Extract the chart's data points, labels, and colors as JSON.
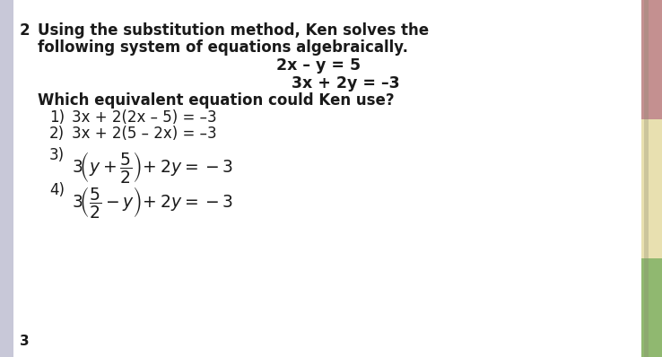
{
  "bg_color": "#f0f0f0",
  "paper_color": "#ffffff",
  "left_bar_color": "#c8c8d8",
  "right_bar_top_color": "#c49090",
  "right_bar_mid_color": "#e8e0b0",
  "right_bar_bot_color": "#90b870",
  "question_number": "2",
  "line1": "Using the substitution method, Ken solves the",
  "line2": "following system of equations algebraically.",
  "eq1": "2x – y = 5",
  "eq2": "3x + 2y = –3",
  "question": "Which equivalent equation could Ken use?",
  "opt1_num": "1)",
  "opt1_text": "3x + 2(2x – 5) = –3",
  "opt2_num": "2)",
  "opt2_text": "3x + 2(5 – 2x) = –3",
  "opt3_num": "3)",
  "opt4_num": "4)",
  "text_color": "#1a1a1a",
  "font_size_body": 12.0,
  "font_size_eq": 12.5,
  "font_size_math": 12.0
}
